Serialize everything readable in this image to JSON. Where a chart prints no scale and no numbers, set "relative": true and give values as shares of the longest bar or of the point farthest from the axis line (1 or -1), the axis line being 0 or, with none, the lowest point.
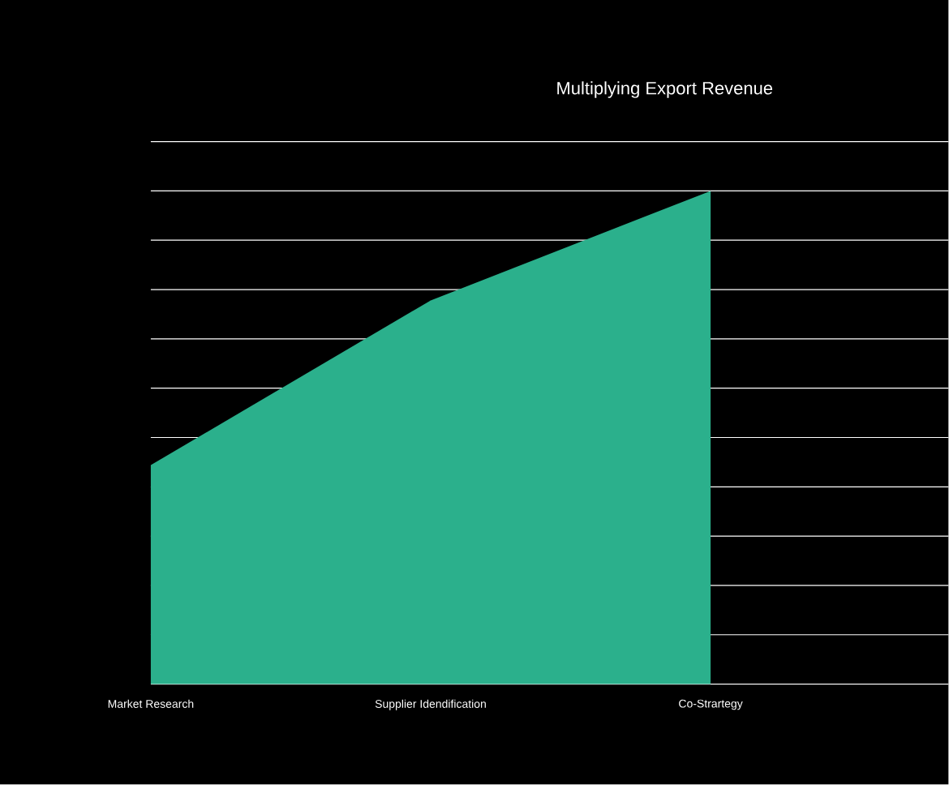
{
  "chart_data": {
    "type": "area",
    "title": "Multiplying Export Revenue",
    "categories": [
      "Market Research",
      "Supplier Idendification",
      "Co-Strartegy"
    ],
    "values": [
      0.444,
      0.778,
      1
    ],
    "color": "#2bb08c",
    "relative": true,
    "grid": "y"
  }
}
